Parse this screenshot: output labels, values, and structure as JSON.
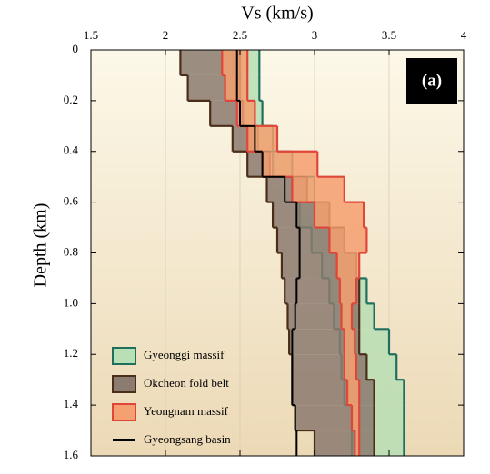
{
  "chart_data": {
    "type": "step-band",
    "title": "Vs (km/s)",
    "ylabel": "Depth (km)",
    "panel_label": "(a)",
    "xlim": [
      1.5,
      4
    ],
    "xticks": [
      1.5,
      2,
      2.5,
      3,
      3.5,
      4
    ],
    "ylim": [
      0,
      1.6
    ],
    "yinverted": true,
    "yticks": [
      0,
      0.2,
      0.4,
      0.6,
      0.8,
      {
        "value": 1,
        "label": "1.0"
      },
      1.2,
      1.4,
      1.6
    ],
    "grid": true,
    "legend": "lower-left",
    "depth": [
      0,
      0.1,
      0.2,
      0.3,
      0.4,
      0.5,
      0.6,
      0.7,
      0.8,
      0.9,
      1,
      1.1,
      1.2,
      1.3,
      1.4,
      1.5,
      1.6
    ],
    "series": [
      {
        "name": "Gyeonggi massif",
        "kind": "band",
        "color": "#1f6f5f",
        "fill": "#b9dfb5",
        "min": [
          2.45,
          2.47,
          2.5,
          2.62,
          2.72,
          2.85,
          2.9,
          2.98,
          3.05,
          3.1,
          3.13,
          3.17,
          3.18,
          3.2,
          3.25,
          3.25
        ],
        "max": [
          2.63,
          2.63,
          2.65,
          2.72,
          2.85,
          3.0,
          3.1,
          3.2,
          3.28,
          3.35,
          3.4,
          3.5,
          3.55,
          3.6,
          3.6,
          3.6
        ]
      },
      {
        "name": "Okcheon fold belt",
        "kind": "band",
        "color": "#4a2e1a",
        "fill": "#8c7b70",
        "min": [
          2.1,
          2.15,
          2.3,
          2.45,
          2.55,
          2.68,
          2.72,
          2.75,
          2.78,
          2.8,
          2.82,
          2.83,
          2.85,
          2.85,
          2.87,
          3.0
        ],
        "max": [
          2.5,
          2.5,
          2.52,
          2.6,
          2.7,
          2.95,
          3.1,
          3.2,
          3.28,
          3.3,
          3.3,
          3.3,
          3.35,
          3.4,
          3.4,
          3.4
        ]
      },
      {
        "name": "Yeongnam massif",
        "kind": "band",
        "color": "#e0453a",
        "fill": "#f5a070",
        "min": [
          2.38,
          2.4,
          2.48,
          2.55,
          2.65,
          2.85,
          3.0,
          3.1,
          3.15,
          3.17,
          3.18,
          3.2,
          3.2,
          3.22,
          3.25,
          3.27
        ],
        "max": [
          2.55,
          2.55,
          2.6,
          2.75,
          3.02,
          3.2,
          3.33,
          3.35,
          3.3,
          3.28,
          3.25,
          3.27,
          3.28,
          3.3,
          3.3,
          3.3
        ]
      },
      {
        "name": "Gyeongsang basin",
        "kind": "line",
        "color": "#000000",
        "values": [
          2.48,
          2.48,
          2.5,
          2.6,
          2.65,
          2.8,
          2.88,
          2.9,
          2.9,
          2.88,
          2.87,
          2.85,
          2.85,
          2.85,
          2.87,
          2.88
        ]
      }
    ]
  }
}
